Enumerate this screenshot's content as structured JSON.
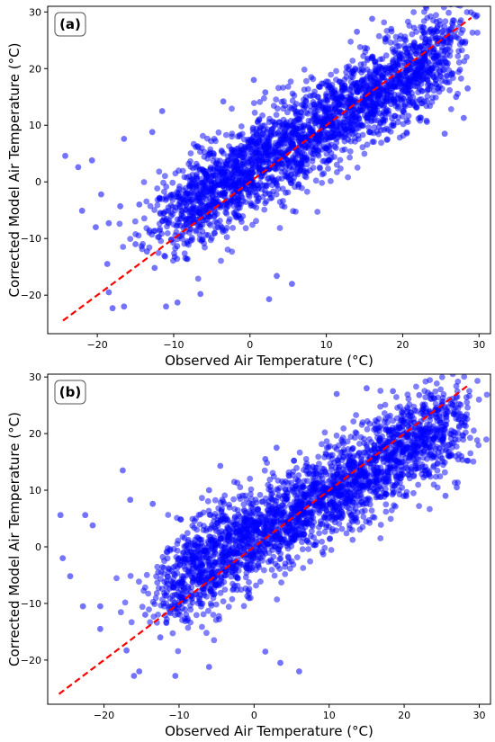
{
  "chart_data": [
    {
      "type": "scatter",
      "panel_label": "(a)",
      "xlabel": "Observed Air Temperature (°C)",
      "ylabel": "Corrected Model Air Temperature (°C)",
      "xlim": [
        -26.5,
        31.5
      ],
      "ylim": [
        -26.8,
        31
      ],
      "xticks": [
        -20,
        -10,
        0,
        10,
        20,
        30
      ],
      "yticks": [
        -20,
        -10,
        0,
        10,
        20,
        30
      ],
      "grid": false,
      "point_color": "#0000ff",
      "reference_line": {
        "from": [
          -24.5,
          -24.5
        ],
        "to": [
          29,
          29
        ],
        "color": "#ff0000",
        "style": "dashed"
      },
      "core_slope": 0.8,
      "core_intercept": 2.5,
      "cloud_x_range": [
        -10,
        26
      ],
      "outliers": [
        [
          -24.2,
          4.6
        ],
        [
          -22.5,
          2.6
        ],
        [
          -20.7,
          3.8
        ],
        [
          -19.5,
          -2.2
        ],
        [
          -18.5,
          -7.3
        ],
        [
          -18.0,
          -22.3
        ],
        [
          -16.5,
          -22.0
        ],
        [
          -18.5,
          -19.5
        ],
        [
          -18.7,
          -14.5
        ],
        [
          -15.0,
          -11.0
        ],
        [
          -13.5,
          -12.3
        ],
        [
          -12.5,
          -15.2
        ],
        [
          -11.0,
          -22.0
        ],
        [
          -9.5,
          -21.3
        ],
        [
          -6.5,
          -19.8
        ],
        [
          -22.0,
          -5.1
        ],
        [
          -20.2,
          -8.0
        ],
        [
          -17.0,
          -4.3
        ],
        [
          -14.5,
          -4.0
        ],
        [
          -16.5,
          7.6
        ],
        [
          -12.8,
          8.8
        ],
        [
          -11.5,
          12.5
        ],
        [
          2.5,
          -20.7
        ],
        [
          5.5,
          -18.0
        ],
        [
          3.5,
          -16.6
        ],
        [
          -3.5,
          14.2
        ],
        [
          0.5,
          18.0
        ],
        [
          2.0,
          15.8
        ],
        [
          27.5,
          19.8
        ],
        [
          27.0,
          15.0
        ],
        [
          28.0,
          11.3
        ],
        [
          25.5,
          8.5
        ],
        [
          28.5,
          16.5
        ],
        [
          16.0,
          28.8
        ],
        [
          21.5,
          27.2
        ],
        [
          18.5,
          27.0
        ],
        [
          14.0,
          26.5
        ],
        [
          23.5,
          26.5
        ]
      ]
    },
    {
      "type": "scatter",
      "panel_label": "(b)",
      "xlabel": "Observed Air Temperature (°C)",
      "ylabel": "Corrected Model Air Temperature (°C)",
      "xlim": [
        -27.5,
        31.5
      ],
      "ylim": [
        -27.8,
        30.5
      ],
      "xticks": [
        -20,
        -10,
        0,
        10,
        20,
        30
      ],
      "yticks": [
        -20,
        -10,
        0,
        10,
        20,
        30
      ],
      "grid": false,
      "point_color": "#0000ff",
      "reference_line": {
        "from": [
          -26,
          -26
        ],
        "to": [
          28.5,
          28.5
        ],
        "color": "#ff0000",
        "style": "dashed"
      },
      "core_slope": 0.75,
      "core_intercept": 2.0,
      "cloud_x_range": [
        -11,
        26.5
      ],
      "outliers": [
        [
          -25.8,
          5.6
        ],
        [
          -25.5,
          -2.0
        ],
        [
          -22.5,
          5.6
        ],
        [
          -21.5,
          3.8
        ],
        [
          -20.5,
          -10.5
        ],
        [
          -24.5,
          -5.2
        ],
        [
          -22.8,
          -10.5
        ],
        [
          -20.5,
          -14.5
        ],
        [
          -17.0,
          -18.3
        ],
        [
          -16.0,
          -22.8
        ],
        [
          -15.3,
          -22.0
        ],
        [
          -10.5,
          -22.8
        ],
        [
          -6.0,
          -21.2
        ],
        [
          -17.5,
          13.5
        ],
        [
          -16.5,
          8.3
        ],
        [
          -13.5,
          7.6
        ],
        [
          -14.5,
          -12.0
        ],
        [
          -12.5,
          -16.0
        ],
        [
          -6.0,
          10.0
        ],
        [
          -4.5,
          14.3
        ],
        [
          1.5,
          15.5
        ],
        [
          3.0,
          17.5
        ],
        [
          6.0,
          -22.0
        ],
        [
          3.5,
          -20.5
        ],
        [
          1.5,
          -18.5
        ],
        [
          28.5,
          15.2
        ],
        [
          28.0,
          21.5
        ],
        [
          27.0,
          10.5
        ],
        [
          25.5,
          9.0
        ],
        [
          28.0,
          23.0
        ],
        [
          11.0,
          27.0
        ],
        [
          15.0,
          28.0
        ],
        [
          18.5,
          27.5
        ],
        [
          22.0,
          26.8
        ],
        [
          24.0,
          26.2
        ]
      ]
    }
  ]
}
